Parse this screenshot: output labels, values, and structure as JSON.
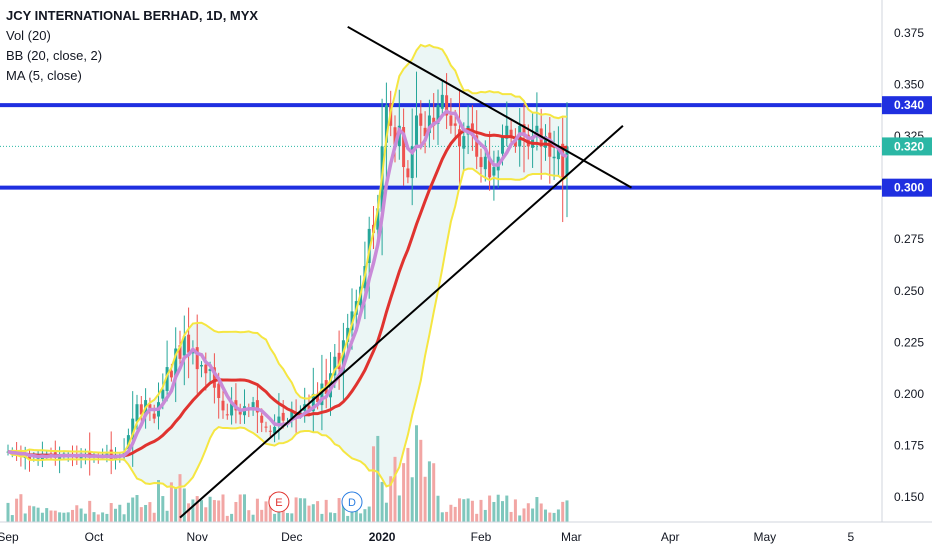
{
  "legend": {
    "title": "JCY INTERNATIONAL BERHAD, 1D, MYX",
    "indicators": [
      "Vol (20)",
      "BB (20, close, 2)",
      "MA (5, close)"
    ]
  },
  "colors": {
    "candle_up": "#26a69a",
    "candle_down": "#ef5350",
    "volume_up": "#7fc7bd",
    "volume_down": "#f2a6a4",
    "bb_band": "#f5e642",
    "bb_fill": "#e6f4f3",
    "bb_basis": "#e0332f",
    "ma5": "#c98ad8",
    "support_resistance": "#1f2fe0",
    "trendline": "#000000",
    "price_label_bg": "#1f2fe0",
    "last_price_bg": "#2bb7a5",
    "axis_text": "#131722"
  },
  "chart_data": {
    "type": "candlestick",
    "title": "JCY INTERNATIONAL BERHAD, 1D, MYX",
    "ylim": [
      0.14,
      0.383
    ],
    "xlim": [
      0,
      200
    ],
    "y_ticks": [
      "0.150",
      "0.175",
      "0.200",
      "0.225",
      "0.250",
      "0.275",
      "0.300",
      "0.325",
      "0.350",
      "0.375"
    ],
    "x_ticks": [
      {
        "label": "Sep",
        "x": 0
      },
      {
        "label": "Oct",
        "x": 20
      },
      {
        "label": "Nov",
        "x": 44
      },
      {
        "label": "Dec",
        "x": 66
      },
      {
        "label": "2020",
        "x": 87
      },
      {
        "label": "Feb",
        "x": 110
      },
      {
        "label": "Mar",
        "x": 131
      },
      {
        "label": "Apr",
        "x": 154
      },
      {
        "label": "May",
        "x": 176
      },
      {
        "label": "5",
        "x": 196
      }
    ],
    "horizontal_lines": [
      {
        "label": "0.340",
        "value": 0.34
      },
      {
        "label": "0.300",
        "value": 0.3
      }
    ],
    "last_price": {
      "label": "0.320",
      "value": 0.32
    },
    "trendlines": [
      {
        "x": [
          79,
          145
        ],
        "y": [
          0.378,
          0.3
        ]
      },
      {
        "x": [
          40,
          143
        ],
        "y": [
          0.14,
          0.33
        ]
      }
    ],
    "events": [
      {
        "label": "E",
        "x": 63
      },
      {
        "label": "D",
        "x": 80
      }
    ],
    "closes": [
      0.172,
      0.171,
      0.171,
      0.17,
      0.171,
      0.168,
      0.17,
      0.169,
      0.171,
      0.17,
      0.17,
      0.169,
      0.17,
      0.171,
      0.17,
      0.17,
      0.169,
      0.171,
      0.17,
      0.169,
      0.17,
      0.169,
      0.17,
      0.171,
      0.168,
      0.17,
      0.17,
      0.172,
      0.18,
      0.188,
      0.195,
      0.19,
      0.197,
      0.192,
      0.188,
      0.196,
      0.202,
      0.213,
      0.208,
      0.222,
      0.217,
      0.228,
      0.22,
      0.221,
      0.212,
      0.214,
      0.21,
      0.212,
      0.203,
      0.198,
      0.192,
      0.19,
      0.196,
      0.192,
      0.19,
      0.194,
      0.192,
      0.196,
      0.191,
      0.186,
      0.184,
      0.182,
      0.184,
      0.189,
      0.187,
      0.186,
      0.192,
      0.189,
      0.191,
      0.195,
      0.192,
      0.2,
      0.196,
      0.205,
      0.2,
      0.21,
      0.218,
      0.212,
      0.226,
      0.232,
      0.24,
      0.245,
      0.252,
      0.262,
      0.28,
      0.278,
      0.29,
      0.32,
      0.34,
      0.33,
      0.32,
      0.33,
      0.31,
      0.305,
      0.32,
      0.335,
      0.33,
      0.325,
      0.335,
      0.33,
      0.34,
      0.345,
      0.335,
      0.33,
      0.33,
      0.32,
      0.325,
      0.33,
      0.325,
      0.315,
      0.31,
      0.315,
      0.305,
      0.31,
      0.315,
      0.325,
      0.33,
      0.325,
      0.32,
      0.33,
      0.325,
      0.32,
      0.325,
      0.33,
      0.32,
      0.325,
      0.315,
      0.315,
      0.32,
      0.305,
      0.32
    ]
  }
}
